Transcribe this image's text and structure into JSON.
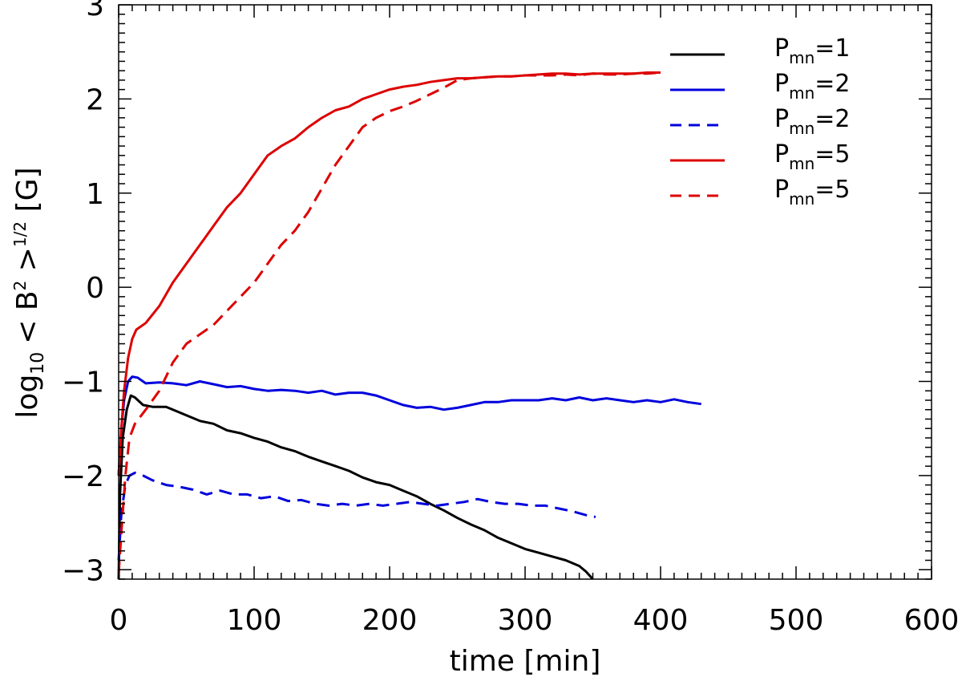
{
  "chart_data": {
    "type": "line",
    "xlabel": "time [min]",
    "ylabel": {
      "prefix": "log",
      "base": "10",
      "expr": "< B",
      "sup": "2",
      "close": " >",
      "power": "1/2",
      "unit": " [G]"
    },
    "xlim": [
      0,
      600
    ],
    "ylim": [
      -3.1,
      3
    ],
    "xticks": [
      0,
      100,
      200,
      300,
      400,
      500,
      600
    ],
    "xtick_labels": [
      "0",
      "100",
      "200",
      "300",
      "400",
      "500",
      "600"
    ],
    "yticks": [
      -3,
      -2,
      -1,
      0,
      1,
      2,
      3
    ],
    "ytick_labels": [
      "−3",
      "−2",
      "−1",
      "0",
      "1",
      "2",
      "3"
    ],
    "grid": false,
    "legend_position": "top-right",
    "series": [
      {
        "name": "P_mn=1",
        "legend": {
          "main": "P",
          "sub": "mn",
          "rest": "=1"
        },
        "color": "#000000",
        "dash": "solid",
        "points": [
          [
            0,
            -3.1
          ],
          [
            1,
            -2.2
          ],
          [
            3,
            -1.6
          ],
          [
            6,
            -1.3
          ],
          [
            9,
            -1.15
          ],
          [
            12,
            -1.17
          ],
          [
            18,
            -1.25
          ],
          [
            25,
            -1.27
          ],
          [
            35,
            -1.27
          ],
          [
            50,
            -1.36
          ],
          [
            60,
            -1.42
          ],
          [
            70,
            -1.45
          ],
          [
            80,
            -1.52
          ],
          [
            90,
            -1.55
          ],
          [
            100,
            -1.6
          ],
          [
            110,
            -1.64
          ],
          [
            120,
            -1.7
          ],
          [
            130,
            -1.74
          ],
          [
            140,
            -1.8
          ],
          [
            150,
            -1.85
          ],
          [
            160,
            -1.9
          ],
          [
            170,
            -1.95
          ],
          [
            180,
            -2.02
          ],
          [
            190,
            -2.07
          ],
          [
            200,
            -2.1
          ],
          [
            210,
            -2.16
          ],
          [
            220,
            -2.22
          ],
          [
            230,
            -2.3
          ],
          [
            240,
            -2.37
          ],
          [
            250,
            -2.45
          ],
          [
            260,
            -2.52
          ],
          [
            270,
            -2.58
          ],
          [
            280,
            -2.66
          ],
          [
            290,
            -2.72
          ],
          [
            300,
            -2.78
          ],
          [
            310,
            -2.82
          ],
          [
            320,
            -2.86
          ],
          [
            330,
            -2.9
          ],
          [
            340,
            -2.96
          ],
          [
            345,
            -3.02
          ],
          [
            350,
            -3.1
          ]
        ]
      },
      {
        "name": "P_mn=2",
        "legend": {
          "main": "P",
          "sub": "mn",
          "rest": "=2"
        },
        "color": "#0000dd",
        "dash": "solid",
        "points": [
          [
            0,
            -2.0
          ],
          [
            2,
            -1.5
          ],
          [
            4,
            -1.2
          ],
          [
            7,
            -1.0
          ],
          [
            10,
            -0.95
          ],
          [
            14,
            -0.96
          ],
          [
            20,
            -1.02
          ],
          [
            30,
            -1.01
          ],
          [
            40,
            -1.02
          ],
          [
            50,
            -1.04
          ],
          [
            60,
            -1.0
          ],
          [
            70,
            -1.03
          ],
          [
            80,
            -1.06
          ],
          [
            90,
            -1.05
          ],
          [
            100,
            -1.08
          ],
          [
            110,
            -1.1
          ],
          [
            120,
            -1.09
          ],
          [
            130,
            -1.1
          ],
          [
            140,
            -1.12
          ],
          [
            150,
            -1.1
          ],
          [
            160,
            -1.14
          ],
          [
            170,
            -1.12
          ],
          [
            180,
            -1.12
          ],
          [
            190,
            -1.15
          ],
          [
            200,
            -1.2
          ],
          [
            210,
            -1.25
          ],
          [
            220,
            -1.28
          ],
          [
            230,
            -1.27
          ],
          [
            240,
            -1.3
          ],
          [
            250,
            -1.28
          ],
          [
            260,
            -1.25
          ],
          [
            270,
            -1.22
          ],
          [
            280,
            -1.22
          ],
          [
            290,
            -1.2
          ],
          [
            300,
            -1.2
          ],
          [
            310,
            -1.2
          ],
          [
            320,
            -1.18
          ],
          [
            330,
            -1.2
          ],
          [
            340,
            -1.17
          ],
          [
            350,
            -1.2
          ],
          [
            360,
            -1.18
          ],
          [
            370,
            -1.2
          ],
          [
            380,
            -1.22
          ],
          [
            390,
            -1.2
          ],
          [
            400,
            -1.22
          ],
          [
            410,
            -1.19
          ],
          [
            420,
            -1.22
          ],
          [
            430,
            -1.24
          ]
        ]
      },
      {
        "name": "P_mn=2",
        "legend": {
          "main": "P",
          "sub": "mn",
          "rest": "=2"
        },
        "color": "#0000dd",
        "dash": "dashed",
        "points": [
          [
            0,
            -2.9
          ],
          [
            2,
            -2.4
          ],
          [
            5,
            -2.1
          ],
          [
            8,
            -2.0
          ],
          [
            12,
            -1.97
          ],
          [
            18,
            -2.0
          ],
          [
            25,
            -2.05
          ],
          [
            35,
            -2.1
          ],
          [
            45,
            -2.12
          ],
          [
            55,
            -2.15
          ],
          [
            65,
            -2.2
          ],
          [
            75,
            -2.16
          ],
          [
            85,
            -2.2
          ],
          [
            95,
            -2.2
          ],
          [
            105,
            -2.24
          ],
          [
            115,
            -2.22
          ],
          [
            125,
            -2.27
          ],
          [
            135,
            -2.26
          ],
          [
            145,
            -2.3
          ],
          [
            155,
            -2.32
          ],
          [
            165,
            -2.3
          ],
          [
            175,
            -2.32
          ],
          [
            185,
            -2.3
          ],
          [
            195,
            -2.32
          ],
          [
            205,
            -2.3
          ],
          [
            215,
            -2.28
          ],
          [
            225,
            -2.3
          ],
          [
            235,
            -2.32
          ],
          [
            245,
            -2.3
          ],
          [
            255,
            -2.28
          ],
          [
            265,
            -2.25
          ],
          [
            275,
            -2.28
          ],
          [
            285,
            -2.3
          ],
          [
            295,
            -2.3
          ],
          [
            305,
            -2.32
          ],
          [
            315,
            -2.32
          ],
          [
            325,
            -2.35
          ],
          [
            335,
            -2.38
          ],
          [
            345,
            -2.42
          ],
          [
            352,
            -2.44
          ]
        ]
      },
      {
        "name": "P_mn=5",
        "legend": {
          "main": "P",
          "sub": "mn",
          "rest": "=5"
        },
        "color": "#dd0000",
        "dash": "solid",
        "points": [
          [
            0,
            -2.0
          ],
          [
            2,
            -1.5
          ],
          [
            4,
            -1.1
          ],
          [
            7,
            -0.75
          ],
          [
            10,
            -0.55
          ],
          [
            13,
            -0.45
          ],
          [
            20,
            -0.38
          ],
          [
            30,
            -0.2
          ],
          [
            40,
            0.05
          ],
          [
            50,
            0.25
          ],
          [
            60,
            0.45
          ],
          [
            70,
            0.65
          ],
          [
            80,
            0.85
          ],
          [
            90,
            1.0
          ],
          [
            100,
            1.2
          ],
          [
            110,
            1.4
          ],
          [
            120,
            1.5
          ],
          [
            130,
            1.58
          ],
          [
            140,
            1.7
          ],
          [
            150,
            1.8
          ],
          [
            160,
            1.88
          ],
          [
            170,
            1.92
          ],
          [
            180,
            2.0
          ],
          [
            190,
            2.05
          ],
          [
            200,
            2.1
          ],
          [
            210,
            2.13
          ],
          [
            220,
            2.15
          ],
          [
            230,
            2.18
          ],
          [
            240,
            2.2
          ],
          [
            250,
            2.22
          ],
          [
            260,
            2.22
          ],
          [
            270,
            2.23
          ],
          [
            280,
            2.24
          ],
          [
            290,
            2.24
          ],
          [
            300,
            2.25
          ],
          [
            310,
            2.26
          ],
          [
            320,
            2.27
          ],
          [
            330,
            2.27
          ],
          [
            340,
            2.26
          ],
          [
            350,
            2.27
          ],
          [
            360,
            2.27
          ],
          [
            370,
            2.27
          ],
          [
            380,
            2.27
          ],
          [
            390,
            2.28
          ],
          [
            400,
            2.28
          ]
        ]
      },
      {
        "name": "P_mn=5",
        "legend": {
          "main": "P",
          "sub": "mn",
          "rest": "=5"
        },
        "color": "#dd0000",
        "dash": "dashed",
        "points": [
          [
            0,
            -3.05
          ],
          [
            2,
            -2.6
          ],
          [
            5,
            -2.0
          ],
          [
            8,
            -1.6
          ],
          [
            12,
            -1.45
          ],
          [
            20,
            -1.3
          ],
          [
            30,
            -1.1
          ],
          [
            40,
            -0.8
          ],
          [
            50,
            -0.6
          ],
          [
            60,
            -0.5
          ],
          [
            70,
            -0.4
          ],
          [
            80,
            -0.25
          ],
          [
            90,
            -0.1
          ],
          [
            100,
            0.05
          ],
          [
            110,
            0.25
          ],
          [
            120,
            0.45
          ],
          [
            130,
            0.6
          ],
          [
            140,
            0.8
          ],
          [
            150,
            1.05
          ],
          [
            160,
            1.3
          ],
          [
            170,
            1.5
          ],
          [
            180,
            1.7
          ],
          [
            190,
            1.8
          ],
          [
            200,
            1.87
          ],
          [
            210,
            1.92
          ],
          [
            220,
            1.98
          ],
          [
            230,
            2.05
          ],
          [
            240,
            2.12
          ],
          [
            250,
            2.2
          ],
          [
            260,
            2.22
          ],
          [
            270,
            2.23
          ],
          [
            280,
            2.24
          ],
          [
            290,
            2.24
          ],
          [
            300,
            2.25
          ],
          [
            310,
            2.25
          ],
          [
            320,
            2.25
          ],
          [
            330,
            2.26
          ],
          [
            340,
            2.25
          ],
          [
            350,
            2.27
          ],
          [
            360,
            2.26
          ],
          [
            370,
            2.26
          ],
          [
            380,
            2.27
          ],
          [
            390,
            2.27
          ],
          [
            400,
            2.28
          ]
        ]
      }
    ]
  }
}
